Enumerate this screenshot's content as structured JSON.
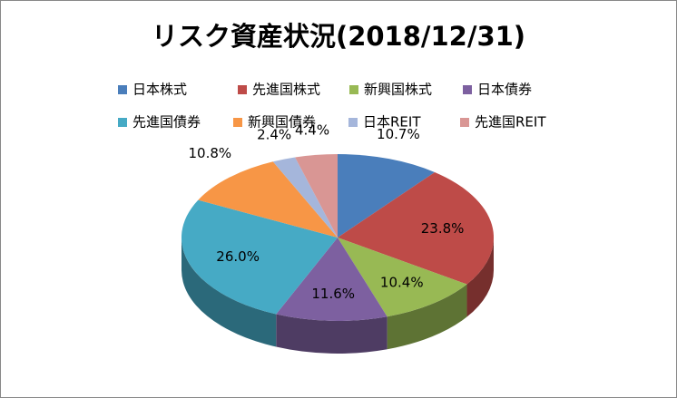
{
  "chart_data": {
    "type": "pie",
    "title": "リスク資産状況(2018/12/31)",
    "categories": [
      "日本株式",
      "先進国株式",
      "新興国株式",
      "日本債券",
      "先進国債券",
      "新興国債券",
      "日本REIT",
      "先進国REIT"
    ],
    "values": [
      10.7,
      23.8,
      10.4,
      11.6,
      26.0,
      10.8,
      2.4,
      4.4
    ],
    "value_labels": [
      "10.7%",
      "23.8%",
      "10.4%",
      "11.6%",
      "26.0%",
      "10.8%",
      "2.4%",
      "4.4%"
    ],
    "colors": [
      "#4a7ebb",
      "#be4b48",
      "#98b954",
      "#7d60a0",
      "#46aac5",
      "#f79646",
      "#a5b6db",
      "#d99694"
    ],
    "legend_position": "top"
  }
}
